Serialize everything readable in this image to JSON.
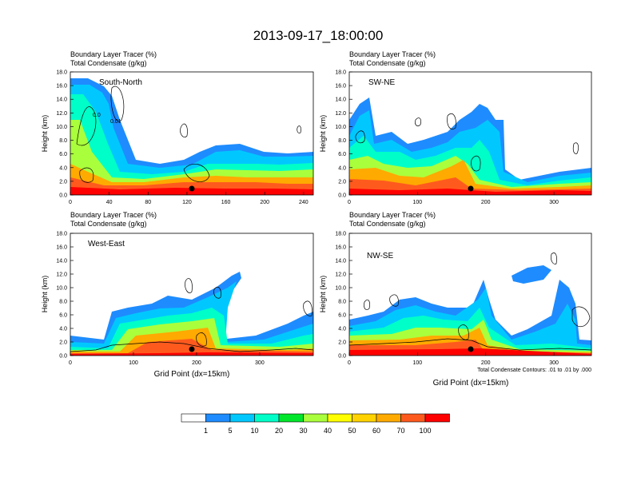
{
  "title": "2013-09-17_18:00:00",
  "footnote": "Total Condensate Contours: .01 to .01 by .000",
  "xlabel": "Grid Point (dx=15km)",
  "colorbar": {
    "labels": [
      "1",
      "5",
      "10",
      "20",
      "30",
      "40",
      "50",
      "60",
      "70",
      "100"
    ],
    "colors": [
      "#ffffff",
      "#1e8cff",
      "#00c8ff",
      "#00ffc8",
      "#00e62a",
      "#aaff3c",
      "#ffff00",
      "#ffd200",
      "#ffaa00",
      "#ff5a1e",
      "#ff0000"
    ]
  },
  "chart_data": [
    {
      "type": "heatmap",
      "title": "Boundary Layer Tracer   (%)",
      "subtitle": "Total Condensate   (g/kg)",
      "section_label": "South-North",
      "ylabel": "Height (km)",
      "xlim": [
        0,
        250
      ],
      "ylim": [
        0,
        18
      ],
      "xticks": [
        "0",
        "40",
        "80",
        "120",
        "160",
        "200",
        "240"
      ],
      "yticks": [
        "0.0",
        "2.0",
        "4.0",
        "6.0",
        "8.0",
        "10.0",
        "12.0",
        "14.0",
        "16.0",
        "18.0"
      ],
      "contour_labels": [
        "0.0",
        "0.01"
      ],
      "marker_x": 125
    },
    {
      "type": "heatmap",
      "title": "Boundary Layer Tracer   (%)",
      "subtitle": "Total Condensate   (g/kg)",
      "section_label": "SW-NE",
      "ylabel": "Height (km)",
      "xlim": [
        0,
        355
      ],
      "ylim": [
        0,
        18
      ],
      "xticks": [
        "0",
        "100",
        "200",
        "300"
      ],
      "yticks": [
        "0.0",
        "2.0",
        "4.0",
        "6.0",
        "8.0",
        "10.0",
        "12.0",
        "14.0",
        "16.0",
        "18.0"
      ],
      "marker_x": 178
    },
    {
      "type": "heatmap",
      "title": "Boundary Layer Tracer   (%)",
      "subtitle": "Total Condensate   (g/kg)",
      "section_label": "West-East",
      "ylabel": "Height (km)",
      "xlim": [
        0,
        385
      ],
      "ylim": [
        0,
        18
      ],
      "xticks": [
        "0",
        "100",
        "200",
        "300"
      ],
      "yticks": [
        "0.0",
        "2.0",
        "4.0",
        "6.0",
        "8.0",
        "10.0",
        "12.0",
        "14.0",
        "16.0",
        "18.0"
      ],
      "marker_x": 190
    },
    {
      "type": "heatmap",
      "title": "Boundary Layer Tracer   (%)",
      "subtitle": "Total Condensate   (g/kg)",
      "section_label": "NW-SE",
      "ylabel": "Height (km)",
      "xlim": [
        0,
        355
      ],
      "ylim": [
        0,
        18
      ],
      "xticks": [
        "0",
        "100",
        "200",
        "300"
      ],
      "yticks": [
        "0.0",
        "2.0",
        "4.0",
        "6.0",
        "8.0",
        "10.0",
        "12.0",
        "14.0",
        "16.0",
        "18.0"
      ],
      "marker_x": 180
    }
  ]
}
